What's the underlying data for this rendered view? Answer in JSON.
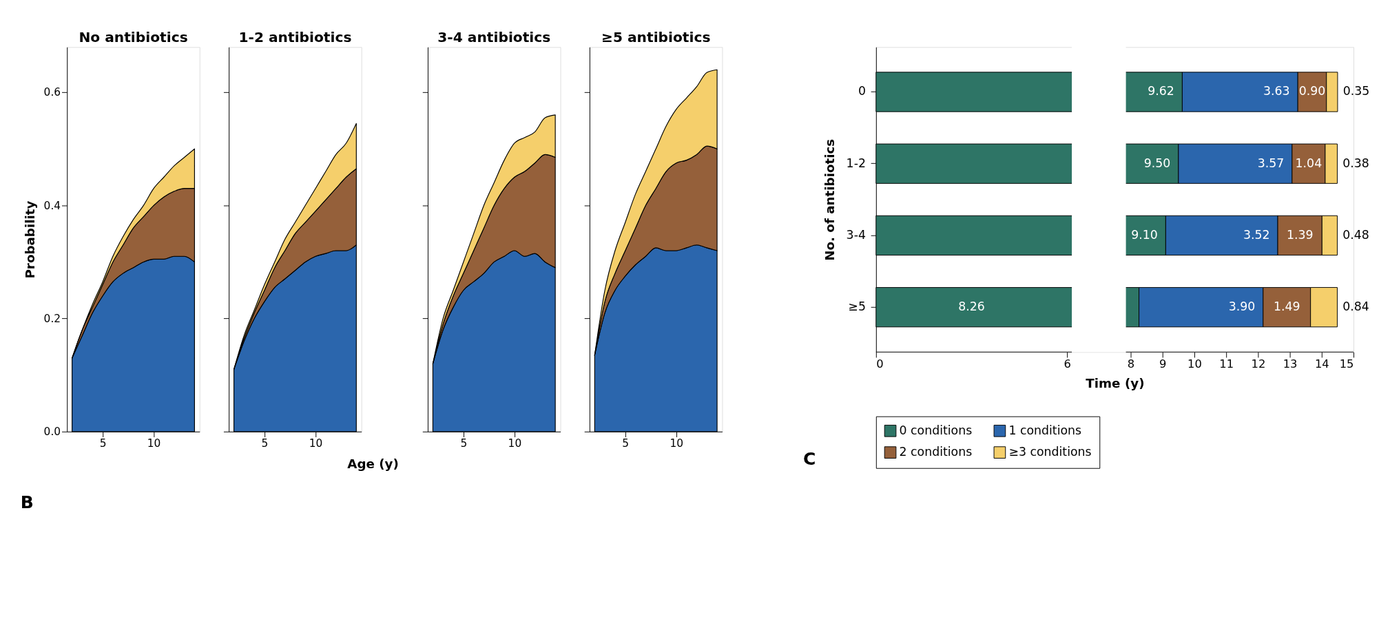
{
  "chart_data": [
    {
      "type": "area",
      "title": "No antibiotics",
      "ylabel": "Probability",
      "stacked": true,
      "legend": false,
      "grid": false,
      "annotations": [
        "B"
      ],
      "x": [
        2,
        3,
        4,
        5,
        6,
        7,
        8,
        9,
        10,
        11,
        12,
        13,
        14
      ],
      "xlim": [
        1.5,
        14.5
      ],
      "xticks": [
        5,
        10
      ],
      "ylim": [
        0,
        0.68
      ],
      "yticks": [
        {
          "value": 0,
          "label": "0.0"
        },
        0.2,
        0.4,
        0.6
      ],
      "series": [
        {
          "color": "#2b66ad",
          "values": [
            0.13,
            0.17,
            0.21,
            0.24,
            0.265,
            0.28,
            0.29,
            0.3,
            0.305,
            0.305,
            0.31,
            0.31,
            0.3
          ]
        },
        {
          "color": "#95603a",
          "values": [
            0,
            0.01,
            0.01,
            0.02,
            0.035,
            0.05,
            0.07,
            0.08,
            0.095,
            0.11,
            0.115,
            0.12,
            0.13
          ]
        },
        {
          "color": "#f5cf6b",
          "values": [
            0,
            0,
            0.005,
            0.005,
            0.01,
            0.015,
            0.015,
            0.02,
            0.03,
            0.035,
            0.045,
            0.055,
            0.07
          ]
        }
      ]
    },
    {
      "type": "area",
      "title": "1-2 antibiotics",
      "xlabel": "Age (y)",
      "stacked": true,
      "legend": false,
      "grid": false,
      "tick_labels": "x",
      "x": [
        2,
        3,
        4,
        5,
        6,
        7,
        8,
        9,
        10,
        11,
        12,
        13,
        14
      ],
      "xlim": [
        1.5,
        14.5
      ],
      "xticks": [
        5,
        10
      ],
      "ylim": [
        0,
        0.68
      ],
      "yticks": [
        0,
        0.2,
        0.4,
        0.6
      ],
      "series": [
        {
          "color": "#2b66ad",
          "values": [
            0.11,
            0.16,
            0.2,
            0.23,
            0.255,
            0.27,
            0.285,
            0.3,
            0.31,
            0.315,
            0.32,
            0.32,
            0.33
          ]
        },
        {
          "color": "#95603a",
          "values": [
            0,
            0.005,
            0.01,
            0.02,
            0.035,
            0.05,
            0.065,
            0.07,
            0.08,
            0.095,
            0.11,
            0.13,
            0.135
          ]
        },
        {
          "color": "#f5cf6b",
          "values": [
            0,
            0.005,
            0.005,
            0.01,
            0.01,
            0.02,
            0.02,
            0.03,
            0.04,
            0.05,
            0.06,
            0.06,
            0.08
          ]
        }
      ]
    },
    {
      "type": "area",
      "title": "3-4 antibiotics",
      "stacked": true,
      "legend": false,
      "grid": false,
      "tick_labels": "x",
      "x": [
        2,
        3,
        4,
        5,
        6,
        7,
        8,
        9,
        10,
        11,
        12,
        13,
        14
      ],
      "xlim": [
        1.5,
        14.5
      ],
      "xticks": [
        5,
        10
      ],
      "ylim": [
        0,
        0.68
      ],
      "yticks": [
        0,
        0.2,
        0.4,
        0.6
      ],
      "series": [
        {
          "color": "#2b66ad",
          "values": [
            0.12,
            0.18,
            0.22,
            0.25,
            0.265,
            0.28,
            0.3,
            0.31,
            0.32,
            0.31,
            0.315,
            0.3,
            0.29
          ]
        },
        {
          "color": "#95603a",
          "values": [
            0,
            0.01,
            0.02,
            0.03,
            0.055,
            0.08,
            0.1,
            0.12,
            0.13,
            0.15,
            0.16,
            0.19,
            0.195
          ]
        },
        {
          "color": "#f5cf6b",
          "values": [
            0,
            0.01,
            0.01,
            0.02,
            0.03,
            0.04,
            0.04,
            0.05,
            0.06,
            0.06,
            0.055,
            0.065,
            0.075
          ]
        }
      ]
    },
    {
      "type": "area",
      "title": "≥5 antibiotics",
      "stacked": true,
      "legend": false,
      "grid": false,
      "tick_labels": "x",
      "x": [
        2,
        3,
        4,
        5,
        6,
        7,
        8,
        9,
        10,
        11,
        12,
        13,
        14
      ],
      "xlim": [
        1.5,
        14.5
      ],
      "xticks": [
        5,
        10
      ],
      "ylim": [
        0,
        0.68
      ],
      "yticks": [
        0,
        0.2,
        0.4,
        0.6
      ],
      "series": [
        {
          "color": "#2b66ad",
          "values": [
            0.135,
            0.21,
            0.25,
            0.275,
            0.295,
            0.31,
            0.325,
            0.32,
            0.32,
            0.325,
            0.33,
            0.325,
            0.32
          ]
        },
        {
          "color": "#95603a",
          "values": [
            0,
            0.02,
            0.03,
            0.045,
            0.065,
            0.09,
            0.105,
            0.14,
            0.155,
            0.155,
            0.16,
            0.18,
            0.18
          ]
        },
        {
          "color": "#f5cf6b",
          "values": [
            0,
            0.02,
            0.04,
            0.05,
            0.06,
            0.06,
            0.07,
            0.08,
            0.095,
            0.11,
            0.12,
            0.13,
            0.14
          ]
        }
      ]
    },
    {
      "type": "bar",
      "orientation": "horizontal",
      "stacked": true,
      "xlabel": "Time (y)",
      "ylabel": "No. of antibiotics",
      "legend": "bottom",
      "grid": false,
      "annotations": [
        "C"
      ],
      "categories": [
        "0",
        "1-2",
        "3-4",
        "≥5"
      ],
      "bands": [
        {
          "axis": "x",
          "from": 6.15,
          "to": 7.85,
          "color": "#ffffff"
        }
      ],
      "xlim": [
        0,
        15
      ],
      "xticks": [
        0,
        6,
        8,
        9,
        10,
        11,
        12,
        13,
        14,
        15
      ],
      "series": [
        {
          "name": "0 conditions",
          "color": "#2e7566",
          "values": [
            9.62,
            9.5,
            9.1,
            8.26
          ],
          "value_labels": [
            "9.62",
            "9.50",
            "9.10",
            "8.26"
          ]
        },
        {
          "name": "1 conditions",
          "color": "#2b66ad",
          "values": [
            3.63,
            3.57,
            3.52,
            3.9
          ],
          "value_labels": [
            "3.63",
            "3.57",
            "3.52",
            "3.90"
          ]
        },
        {
          "name": "2 conditions",
          "color": "#95603a",
          "values": [
            0.9,
            1.04,
            1.39,
            1.49
          ],
          "value_labels": [
            "0.90",
            "1.04",
            "1.39",
            "1.49"
          ]
        },
        {
          "name": "≥3 conditions",
          "color": "#f5cf6b",
          "values": [
            0.35,
            0.38,
            0.48,
            0.84
          ],
          "value_labels": [
            "0.35",
            "0.38",
            "0.48",
            "0.84"
          ]
        }
      ]
    }
  ]
}
